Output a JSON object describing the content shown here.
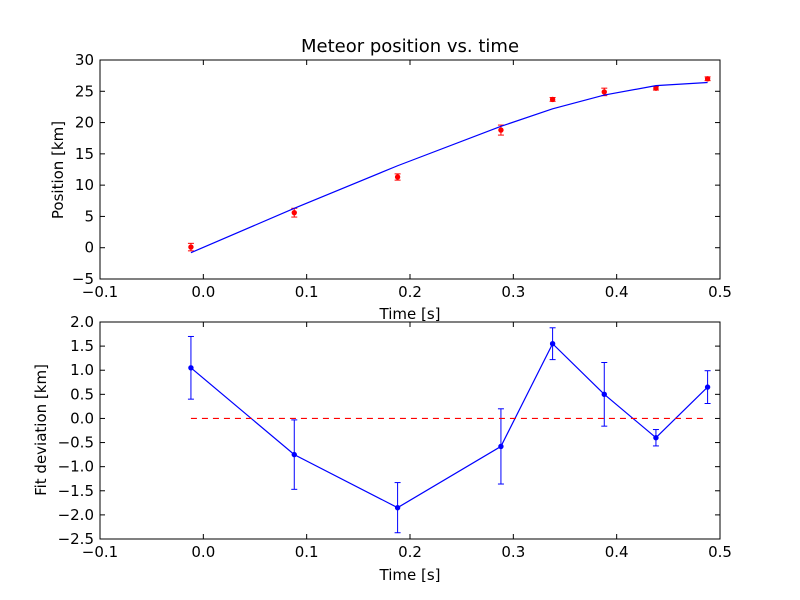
{
  "chart_data": [
    {
      "type": "scatter",
      "title": "Meteor position vs. time",
      "xlabel": "Time [s]",
      "ylabel": "Position [km]",
      "xlim": [
        -0.1,
        0.5
      ],
      "ylim": [
        -5,
        30
      ],
      "xticks": [
        -0.1,
        0.0,
        0.1,
        0.2,
        0.3,
        0.4,
        0.5
      ],
      "yticks": [
        -5,
        0,
        5,
        10,
        15,
        20,
        25,
        30
      ],
      "xtick_labels": [
        "−0.1",
        "0.0",
        "0.1",
        "0.2",
        "0.3",
        "0.4",
        "0.5"
      ],
      "ytick_labels": [
        "−5",
        "0",
        "5",
        "10",
        "15",
        "20",
        "25",
        "30"
      ],
      "grid": false,
      "series": [
        {
          "kind": "errorbar-points",
          "color": "#ff0000",
          "x": [
            -0.012,
            0.088,
            0.188,
            0.288,
            0.338,
            0.388,
            0.438,
            0.488
          ],
          "y": [
            0.1,
            5.6,
            11.3,
            18.8,
            23.7,
            24.9,
            25.5,
            27.0
          ],
          "yerr": [
            0.6,
            0.7,
            0.5,
            0.8,
            0.3,
            0.6,
            0.3,
            0.3
          ]
        },
        {
          "kind": "line",
          "color": "#0000ff",
          "x": [
            -0.012,
            0.088,
            0.188,
            0.288,
            0.338,
            0.388,
            0.438,
            0.488
          ],
          "y": [
            -0.8,
            6.3,
            13.1,
            19.4,
            22.2,
            24.4,
            25.9,
            26.4
          ]
        }
      ]
    },
    {
      "type": "line",
      "title": "",
      "xlabel": "Time [s]",
      "ylabel": "Fit deviation [km]",
      "xlim": [
        -0.1,
        0.5
      ],
      "ylim": [
        -2.5,
        2.0
      ],
      "xticks": [
        -0.1,
        0.0,
        0.1,
        0.2,
        0.3,
        0.4,
        0.5
      ],
      "yticks": [
        -2.5,
        -2.0,
        -1.5,
        -1.0,
        -0.5,
        0.0,
        0.5,
        1.0,
        1.5,
        2.0
      ],
      "xtick_labels": [
        "−0.1",
        "0.0",
        "0.1",
        "0.2",
        "0.3",
        "0.4",
        "0.5"
      ],
      "ytick_labels": [
        "−2.5",
        "−2.0",
        "−1.5",
        "−1.0",
        "−0.5",
        "0.0",
        "0.5",
        "1.0",
        "1.5",
        "2.0"
      ],
      "grid": false,
      "series": [
        {
          "kind": "errorbar-line",
          "color": "#0000ff",
          "x": [
            -0.012,
            0.088,
            0.188,
            0.288,
            0.338,
            0.388,
            0.438,
            0.488
          ],
          "y": [
            1.05,
            -0.75,
            -1.85,
            -0.58,
            1.55,
            0.5,
            -0.4,
            0.65
          ],
          "yerr": [
            0.65,
            0.72,
            0.52,
            0.78,
            0.33,
            0.66,
            0.17,
            0.34
          ]
        },
        {
          "kind": "reference-line",
          "color": "#ff0000",
          "dash": "dashed",
          "x": [
            -0.012,
            0.488
          ],
          "y": [
            0.0,
            0.0
          ]
        }
      ]
    }
  ]
}
